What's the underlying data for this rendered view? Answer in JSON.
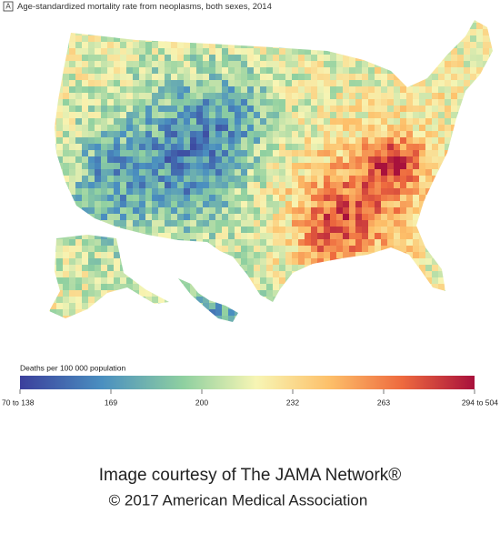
{
  "panel_label": "A",
  "title": "Age-standardized mortality rate from neoplasms, both sexes, 2014",
  "legend": {
    "title": "Deaths per 100 000 population",
    "ticks": [
      "70 to 138",
      "169",
      "200",
      "232",
      "263",
      "294 to 504"
    ]
  },
  "credits": [
    "Image courtesy of The JAMA Network®",
    "© 2017 American Medical Association"
  ]
}
